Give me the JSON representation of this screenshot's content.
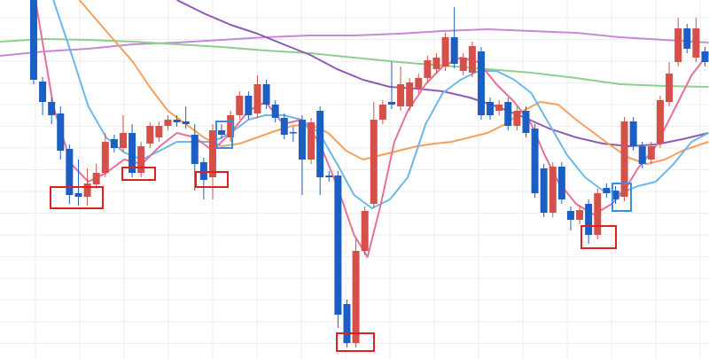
{
  "chart_data": {
    "type": "candlestick",
    "grid": true,
    "up_color": "#d6504a",
    "down_color": "#1c5fc4",
    "xlim": [
      -3.76,
      75.45
    ],
    "ylim": [
      0,
      405
    ],
    "open": [
      405,
      313,
      290,
      277,
      237,
      187,
      183,
      197,
      210,
      248,
      238,
      255,
      210,
      243,
      250,
      263,
      270,
      268,
      253,
      222,
      205,
      258,
      250,
      275,
      297,
      277,
      310,
      287,
      272,
      256,
      270,
      225,
      280,
      207,
      207,
      62,
      18,
      122,
      175,
      270,
      290,
      285,
      285,
      305,
      317,
      327,
      330,
      363,
      325,
      323,
      347,
      290,
      280,
      290,
      263,
      280,
      260,
      215,
      165,
      217,
      167,
      157,
      175,
      140,
      193,
      190,
      183,
      268,
      240,
      225,
      243,
      290,
      335,
      373,
      340,
      347
    ],
    "high": [
      405,
      318,
      295,
      285,
      242,
      225,
      215,
      220,
      255,
      253,
      275,
      265,
      245,
      267,
      268,
      275,
      275,
      285,
      265,
      227,
      265,
      265,
      280,
      302,
      302,
      320,
      315,
      292,
      277,
      262,
      275,
      272,
      285,
      212,
      212,
      67,
      135,
      172,
      290,
      292,
      335,
      330,
      317,
      322,
      342,
      345,
      368,
      397,
      345,
      358,
      352,
      295,
      292,
      295,
      285,
      285,
      265,
      220,
      222,
      222,
      172,
      173,
      180,
      192,
      198,
      195,
      273,
      273,
      245,
      245,
      297,
      335,
      385,
      378,
      385,
      352
    ],
    "low": [
      310,
      275,
      265,
      225,
      175,
      173,
      173,
      192,
      205,
      233,
      233,
      205,
      205,
      238,
      245,
      258,
      262,
      260,
      190,
      180,
      180,
      248,
      245,
      270,
      270,
      272,
      282,
      267,
      248,
      245,
      185,
      220,
      185,
      200,
      35,
      13,
      13,
      117,
      170,
      265,
      282,
      280,
      280,
      300,
      312,
      322,
      325,
      328,
      320,
      318,
      270,
      270,
      275,
      258,
      258,
      250,
      182,
      160,
      160,
      175,
      145,
      152,
      130,
      135,
      182,
      175,
      178,
      235,
      215,
      220,
      238,
      285,
      330,
      345,
      335,
      330
    ],
    "close": [
      315,
      290,
      275,
      235,
      185,
      183,
      198,
      210,
      245,
      238,
      255,
      210,
      240,
      263,
      263,
      270,
      267,
      265,
      220,
      202,
      258,
      253,
      275,
      297,
      275,
      310,
      287,
      272,
      253,
      255,
      225,
      267,
      205,
      205,
      50,
      18,
      122,
      167,
      270,
      287,
      287,
      310,
      312,
      317,
      337,
      340,
      363,
      333,
      340,
      353,
      275,
      275,
      287,
      263,
      280,
      255,
      187,
      165,
      217,
      180,
      157,
      168,
      140,
      187,
      187,
      180,
      268,
      240,
      220,
      240,
      292,
      322,
      373,
      350,
      373,
      335
    ],
    "lines": [
      {
        "color": "#c888d8",
        "x": [
          -3.76,
          1.2,
          6.1,
          11.1,
          16.0,
          21.0,
          25.9,
          30.9,
          35.8,
          40.8,
          45.7,
          50.7,
          55.6,
          60.6,
          65.5,
          70.5,
          75.4
        ],
        "values": [
          342,
          347,
          350,
          355,
          357,
          360,
          363,
          365,
          365,
          367,
          370,
          372,
          370,
          368,
          363,
          360,
          357
        ]
      },
      {
        "color": "#8ecf8e",
        "x": [
          -3.76,
          1.2,
          6.1,
          11.1,
          16.0,
          21.0,
          25.9,
          30.9,
          35.8,
          40.8,
          45.7,
          50.7,
          55.6,
          60.6,
          65.5,
          70.5,
          75.4
        ],
        "values": [
          358,
          361,
          360,
          358,
          355,
          352,
          348,
          345,
          340,
          335,
          331,
          327,
          323,
          317,
          310,
          308,
          307
        ]
      },
      {
        "color": "#8e5cb5",
        "x": [
          16.0,
          19.0,
          22.0,
          25.0,
          27.9,
          30.9,
          33.9,
          36.8,
          39.8,
          42.8,
          45.7,
          48.7,
          51.7,
          54.7,
          57.6,
          60.6,
          63.6,
          66.5,
          69.5,
          72.5,
          75.4
        ],
        "values": [
          405,
          390,
          377,
          367,
          355,
          343,
          327,
          315,
          307,
          305,
          302,
          295,
          285,
          273,
          260,
          250,
          243,
          240,
          242,
          248,
          255
        ]
      },
      {
        "color": "#f5a05a",
        "x": [
          5.1,
          8.1,
          11.1,
          13.1,
          15.0,
          17.0,
          19.0,
          21.0,
          23.0,
          25.0,
          26.9,
          28.9,
          30.9,
          32.9,
          34.9,
          36.8,
          38.8,
          40.8,
          42.8,
          44.8,
          46.7,
          48.7,
          50.7,
          52.7,
          54.7,
          56.6,
          58.6,
          60.6,
          62.6,
          64.6,
          66.5,
          68.5,
          70.5,
          72.5,
          74.5,
          75.4
        ],
        "values": [
          405,
          370,
          335,
          305,
          280,
          265,
          250,
          240,
          243,
          250,
          257,
          263,
          265,
          255,
          235,
          225,
          230,
          235,
          240,
          243,
          245,
          250,
          255,
          265,
          280,
          290,
          287,
          270,
          255,
          240,
          227,
          220,
          225,
          235,
          242,
          245
        ]
      },
      {
        "color": "#6cb8e8",
        "x": [
          2.2,
          4.2,
          6.1,
          8.1,
          10.1,
          12.1,
          14.1,
          16.0,
          18.0,
          20.0,
          22.0,
          24.0,
          25.9,
          27.9,
          29.9,
          31.9,
          33.9,
          35.8,
          37.8,
          39.8,
          41.8,
          43.8,
          45.7,
          47.7,
          49.7,
          51.7,
          53.7,
          55.6,
          57.6,
          59.6,
          61.6,
          63.6,
          65.5,
          67.5,
          69.5,
          71.5,
          73.5,
          75.4
        ],
        "values": [
          405,
          345,
          285,
          250,
          233,
          225,
          235,
          245,
          245,
          245,
          255,
          270,
          275,
          275,
          270,
          255,
          220,
          185,
          170,
          180,
          205,
          265,
          300,
          315,
          325,
          325,
          315,
          300,
          265,
          230,
          205,
          190,
          187,
          195,
          200,
          220,
          245,
          255
        ]
      },
      {
        "color": "#e8709a",
        "x": [
          0.2,
          2.2,
          4.2,
          6.1,
          8.1,
          10.1,
          12.1,
          14.1,
          16.0,
          18.0,
          20.0,
          22.0,
          24.0,
          25.9,
          27.9,
          29.9,
          31.9,
          33.9,
          35.8,
          37.3,
          38.8,
          40.3,
          41.8,
          43.8,
          45.7,
          47.7,
          49.7,
          51.7,
          53.7,
          55.6,
          57.1,
          58.6,
          60.6,
          62.6,
          64.6,
          66.0,
          67.5,
          69.5,
          71.5,
          73.5,
          75.4
        ],
        "values": [
          405,
          285,
          220,
          200,
          210,
          225,
          220,
          240,
          255,
          250,
          235,
          255,
          280,
          290,
          265,
          270,
          245,
          195,
          140,
          115,
          175,
          245,
          280,
          310,
          330,
          340,
          335,
          310,
          290,
          265,
          230,
          200,
          175,
          163,
          175,
          190,
          215,
          240,
          280,
          320,
          345
        ]
      }
    ]
  }
}
